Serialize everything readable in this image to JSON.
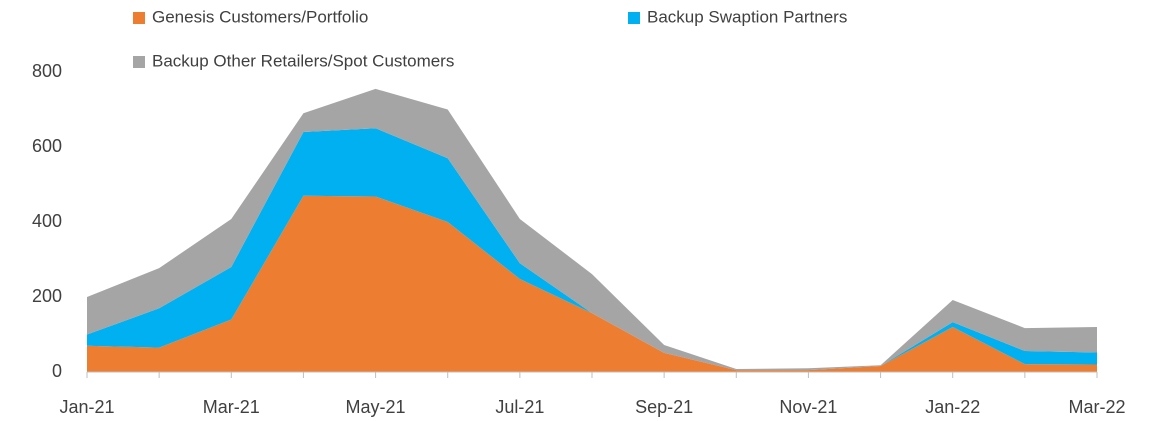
{
  "chart_data": {
    "type": "stacked_area",
    "categories": [
      "Jan-21",
      null,
      "Mar-21",
      null,
      "May-21",
      null,
      "Jul-21",
      null,
      "Sep-21",
      null,
      "Nov-21",
      null,
      "Jan-22",
      null,
      "Mar-22"
    ],
    "series": [
      {
        "name": "Genesis Customers/Portfolio",
        "color": "#ED7D31",
        "values": [
          70,
          65,
          140,
          470,
          468,
          400,
          248,
          157,
          51,
          5,
          5,
          16,
          120,
          21,
          20
        ]
      },
      {
        "name": "Backup Swaption Partners",
        "color": "#00B0F0",
        "values": [
          30,
          105,
          140,
          170,
          182,
          170,
          42,
          0,
          0,
          0,
          0,
          0,
          13,
          35,
          32
        ]
      },
      {
        "name": "Backup Other Retailers/Spot Customers",
        "color": "#A5A5A5",
        "values": [
          100,
          107,
          128,
          50,
          105,
          130,
          118,
          104,
          21,
          3,
          5,
          2,
          59,
          61,
          68
        ]
      }
    ],
    "ylim": [
      0,
      800
    ],
    "yticks": [
      0,
      200,
      400,
      600,
      800
    ],
    "legend": "top"
  }
}
